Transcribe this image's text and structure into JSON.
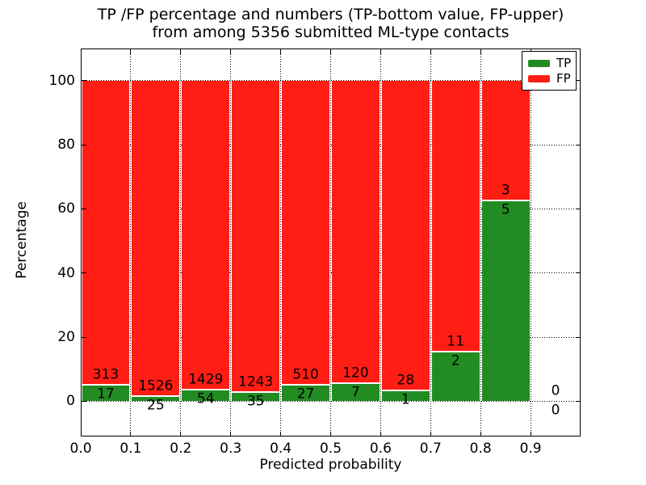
{
  "chart_data": {
    "type": "bar",
    "stacked": true,
    "normalized": "percent",
    "title_line1": "TP /FP percentage and numbers (TP-bottom value, FP-upper)",
    "title_line2": "from among 5356 submitted ML-type contacts",
    "xlabel": "Predicted probability",
    "ylabel": "Percentage",
    "xlim": [
      0.0,
      1.0
    ],
    "ylim": [
      -11,
      110
    ],
    "bin_width": 0.1,
    "bin_starts": [
      0.0,
      0.1,
      0.2,
      0.3,
      0.4,
      0.5,
      0.6,
      0.7,
      0.8,
      0.9
    ],
    "x_tick_labels": [
      "0.0",
      "0.1",
      "0.2",
      "0.3",
      "0.4",
      "0.5",
      "0.6",
      "0.7",
      "0.8",
      "0.9"
    ],
    "y_ticks": [
      0,
      20,
      40,
      60,
      80,
      100
    ],
    "grid": "dotted",
    "series": [
      {
        "name": "TP",
        "color": "#228B22",
        "values": [
          17,
          25,
          54,
          35,
          27,
          7,
          1,
          2,
          5,
          0
        ]
      },
      {
        "name": "FP",
        "color": "#FF1D14",
        "values": [
          313,
          1526,
          1429,
          1243,
          510,
          120,
          28,
          11,
          3,
          0
        ]
      }
    ],
    "legend": {
      "position": "upper-right",
      "entries": [
        "TP",
        "FP"
      ]
    }
  }
}
